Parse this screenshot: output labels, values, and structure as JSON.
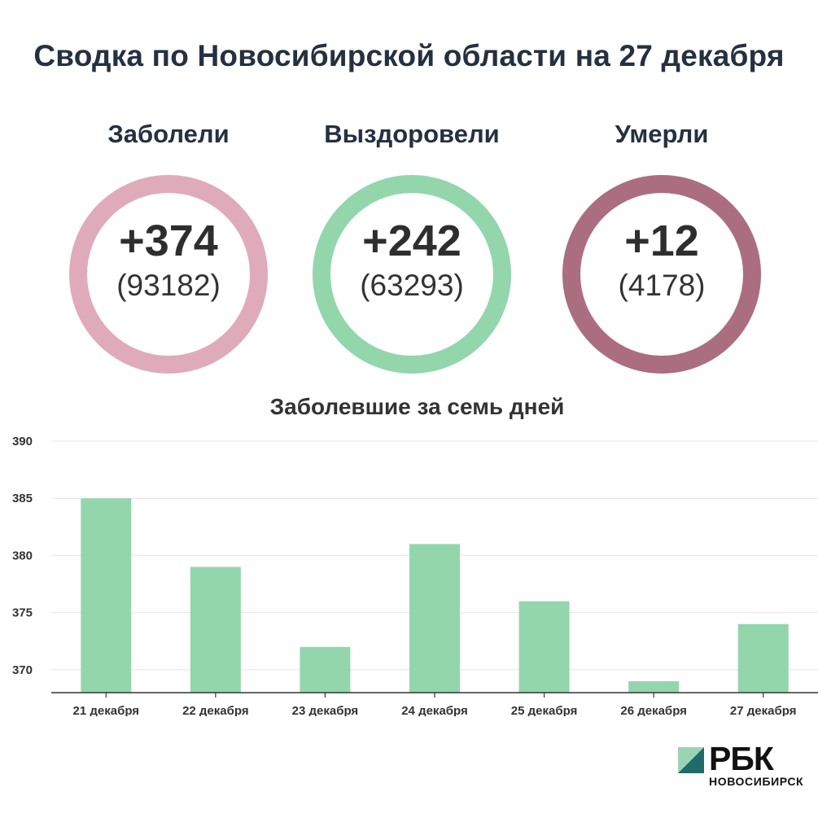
{
  "title": "Сводка по Новосибирской области на 27 декабря",
  "stats": [
    {
      "label": "Заболели",
      "delta": "+374",
      "total": "(93182)",
      "color": "#dfabbb"
    },
    {
      "label": "Выздоровели",
      "delta": "+242",
      "total": "(63293)",
      "color": "#93d6ac"
    },
    {
      "label": "Умерли",
      "delta": "+12",
      "total": "(4178)",
      "color": "#ab6e81"
    }
  ],
  "chart_data": {
    "type": "bar",
    "title": "Заболевшие за семь дней",
    "categories": [
      "21 декабря",
      "22 декабря",
      "23 декабря",
      "24 декабря",
      "25 декабря",
      "26 декабря",
      "27 декабря"
    ],
    "values": [
      385,
      379,
      372,
      381,
      376,
      369,
      374
    ],
    "ylim": [
      368,
      390
    ],
    "yticks": [
      370,
      375,
      380,
      385,
      390
    ],
    "xlabel": "",
    "ylabel": "",
    "grid": true,
    "bar_color": "#93d6ac"
  },
  "logo": {
    "name": "РБК",
    "sub": "НОВОСИБИРСК",
    "colors": [
      "#9bd4b5",
      "#1f6b67"
    ]
  }
}
